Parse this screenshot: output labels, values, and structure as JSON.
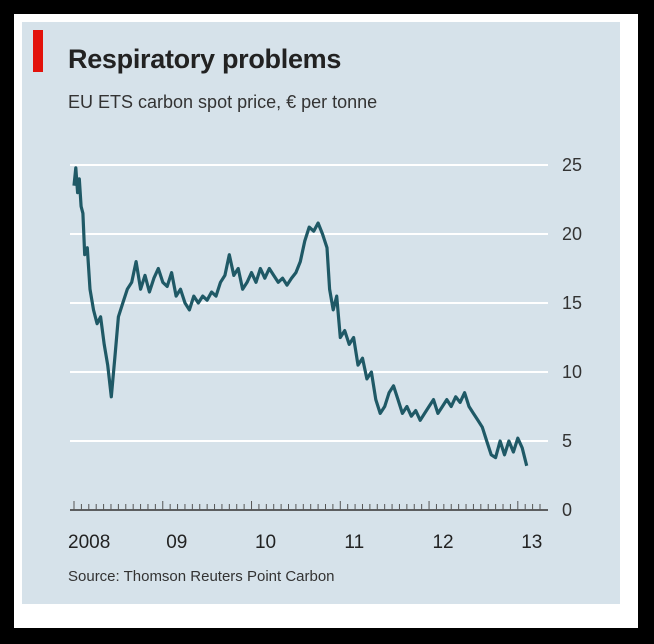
{
  "header": {
    "title": "Respiratory problems",
    "subtitle": "EU ETS carbon spot price, € per tonne"
  },
  "footer": {
    "source": "Source: Thomson Reuters Point Carbon"
  },
  "colors": {
    "background": "#d6e2ea",
    "line": "#1f5966",
    "gridline": "#ffffff",
    "accent": "#e3120b"
  },
  "chart_data": {
    "type": "line",
    "title": "Respiratory problems",
    "subtitle": "EU ETS carbon spot price, € per tonne",
    "ylabel": "",
    "xlabel": "",
    "ylim": [
      0,
      25
    ],
    "y_ticks": [
      0,
      5,
      10,
      15,
      20,
      25
    ],
    "y_axis_side": "right",
    "xlim": [
      2008.0,
      2013.25
    ],
    "x_tick_labels": [
      {
        "x": 2008,
        "label": "2008"
      },
      {
        "x": 2009,
        "label": "09"
      },
      {
        "x": 2010,
        "label": "10"
      },
      {
        "x": 2011,
        "label": "11"
      },
      {
        "x": 2012,
        "label": "12"
      },
      {
        "x": 2013,
        "label": "13"
      }
    ],
    "grid": "horizontal",
    "legend": "none",
    "series": [
      {
        "points": [
          [
            2008.0,
            23.5
          ],
          [
            2008.02,
            24.8
          ],
          [
            2008.04,
            23.0
          ],
          [
            2008.06,
            24.0
          ],
          [
            2008.08,
            22.0
          ],
          [
            2008.1,
            21.5
          ],
          [
            2008.12,
            18.5
          ],
          [
            2008.15,
            19.0
          ],
          [
            2008.18,
            16.0
          ],
          [
            2008.22,
            14.5
          ],
          [
            2008.26,
            13.5
          ],
          [
            2008.3,
            14.0
          ],
          [
            2008.34,
            12.0
          ],
          [
            2008.38,
            10.5
          ],
          [
            2008.42,
            8.2
          ],
          [
            2008.46,
            11.0
          ],
          [
            2008.5,
            14.0
          ],
          [
            2008.55,
            15.0
          ],
          [
            2008.6,
            16.0
          ],
          [
            2008.65,
            16.5
          ],
          [
            2008.7,
            18.0
          ],
          [
            2008.75,
            16.0
          ],
          [
            2008.8,
            17.0
          ],
          [
            2008.85,
            15.8
          ],
          [
            2008.9,
            16.8
          ],
          [
            2008.95,
            17.5
          ],
          [
            2009.0,
            16.5
          ],
          [
            2009.05,
            16.2
          ],
          [
            2009.1,
            17.2
          ],
          [
            2009.15,
            15.5
          ],
          [
            2009.2,
            16.0
          ],
          [
            2009.25,
            15.0
          ],
          [
            2009.3,
            14.5
          ],
          [
            2009.35,
            15.5
          ],
          [
            2009.4,
            15.0
          ],
          [
            2009.45,
            15.5
          ],
          [
            2009.5,
            15.2
          ],
          [
            2009.55,
            15.8
          ],
          [
            2009.6,
            15.5
          ],
          [
            2009.65,
            16.5
          ],
          [
            2009.7,
            17.0
          ],
          [
            2009.75,
            18.5
          ],
          [
            2009.8,
            17.0
          ],
          [
            2009.85,
            17.5
          ],
          [
            2009.9,
            16.0
          ],
          [
            2009.95,
            16.5
          ],
          [
            2010.0,
            17.2
          ],
          [
            2010.05,
            16.5
          ],
          [
            2010.1,
            17.5
          ],
          [
            2010.15,
            16.8
          ],
          [
            2010.2,
            17.5
          ],
          [
            2010.25,
            17.0
          ],
          [
            2010.3,
            16.5
          ],
          [
            2010.35,
            16.8
          ],
          [
            2010.4,
            16.3
          ],
          [
            2010.45,
            16.8
          ],
          [
            2010.5,
            17.2
          ],
          [
            2010.55,
            18.0
          ],
          [
            2010.6,
            19.5
          ],
          [
            2010.65,
            20.5
          ],
          [
            2010.7,
            20.2
          ],
          [
            2010.75,
            20.8
          ],
          [
            2010.8,
            20.0
          ],
          [
            2010.85,
            19.0
          ],
          [
            2010.88,
            16.0
          ],
          [
            2010.92,
            14.5
          ],
          [
            2010.96,
            15.5
          ],
          [
            2011.0,
            12.5
          ],
          [
            2011.05,
            13.0
          ],
          [
            2011.1,
            12.0
          ],
          [
            2011.15,
            12.5
          ],
          [
            2011.2,
            10.5
          ],
          [
            2011.25,
            11.0
          ],
          [
            2011.3,
            9.5
          ],
          [
            2011.35,
            10.0
          ],
          [
            2011.4,
            8.0
          ],
          [
            2011.45,
            7.0
          ],
          [
            2011.5,
            7.5
          ],
          [
            2011.55,
            8.5
          ],
          [
            2011.6,
            9.0
          ],
          [
            2011.65,
            8.0
          ],
          [
            2011.7,
            7.0
          ],
          [
            2011.75,
            7.5
          ],
          [
            2011.8,
            6.8
          ],
          [
            2011.85,
            7.2
          ],
          [
            2011.9,
            6.5
          ],
          [
            2011.95,
            7.0
          ],
          [
            2012.0,
            7.5
          ],
          [
            2012.05,
            8.0
          ],
          [
            2012.1,
            7.0
          ],
          [
            2012.15,
            7.5
          ],
          [
            2012.2,
            8.0
          ],
          [
            2012.25,
            7.5
          ],
          [
            2012.3,
            8.2
          ],
          [
            2012.35,
            7.8
          ],
          [
            2012.4,
            8.5
          ],
          [
            2012.45,
            7.5
          ],
          [
            2012.5,
            7.0
          ],
          [
            2012.55,
            6.5
          ],
          [
            2012.6,
            6.0
          ],
          [
            2012.65,
            5.0
          ],
          [
            2012.7,
            4.0
          ],
          [
            2012.75,
            3.8
          ],
          [
            2012.8,
            5.0
          ],
          [
            2012.85,
            4.0
          ],
          [
            2012.9,
            5.0
          ],
          [
            2012.95,
            4.2
          ],
          [
            2013.0,
            5.2
          ],
          [
            2013.05,
            4.5
          ],
          [
            2013.1,
            3.2
          ]
        ]
      }
    ]
  }
}
